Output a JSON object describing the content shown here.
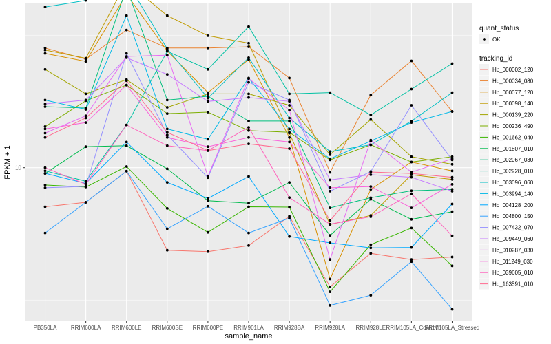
{
  "chart_data": {
    "type": "line",
    "xlabel": "sample_name",
    "ylabel": "FPKM + 1",
    "y_scale": "log",
    "y_ticks": [
      10
    ],
    "y_tick_labels": [
      "10"
    ],
    "ylim_log10": [
      0.42,
      1.62
    ],
    "grid": true,
    "legend_position": "right",
    "categories": [
      "PB350LA",
      "RRIM600LA",
      "RRIM600LE",
      "RRIM600SE",
      "RRIM600PE",
      "RRIM901LA",
      "RRIM928BA",
      "RRIM928LA",
      "RRIM928LE",
      "RRIM105LA_Control",
      "RRIM105LA_Stressed"
    ],
    "legends": [
      {
        "title": "quant_status",
        "entries": [
          "OK"
        ]
      },
      {
        "title": "tracking_id",
        "entries": [
          "Hb_000002_120",
          "Hb_000034_080",
          "Hb_000077_120",
          "Hb_000098_140",
          "Hb_000139_220",
          "Hb_000236_490",
          "Hb_001662_040",
          "Hb_001807_010",
          "Hb_002067_030",
          "Hb_002928_010",
          "Hb_003096_060",
          "Hb_003994_140",
          "Hb_004128_200",
          "Hb_004800_150",
          "Hb_007432_070",
          "Hb_009449_060",
          "Hb_010287_030",
          "Hb_011249_030",
          "Hb_039605_010",
          "Hb_163591_010"
        ]
      }
    ],
    "series": [
      {
        "name": "Hb_000002_120",
        "color": "#F8766D",
        "values": [
          7.12,
          7.4,
          9.7,
          4.88,
          4.82,
          5.08,
          6.55,
          3.55,
          4.75,
          4.5,
          4.6
        ]
      },
      {
        "name": "Hb_000034_080",
        "color": "#EA8331",
        "values": [
          28.3,
          25.7,
          33.1,
          28.3,
          28.3,
          28.6,
          21.8,
          9.6,
          18.8,
          25.3,
          16.3
        ]
      },
      {
        "name": "Hb_000077_120",
        "color": "#D89000",
        "values": [
          27.0,
          25.2,
          45.2,
          27.6,
          19.2,
          25.6,
          13.0,
          3.8,
          8.28,
          10.5,
          9.72
        ]
      },
      {
        "name": "Hb_000098_140",
        "color": "#C09B00",
        "values": [
          27.8,
          25.9,
          50.3,
          37.5,
          31.5,
          29.5,
          13.5,
          6.1,
          6.6,
          9.4,
          9.03
        ]
      },
      {
        "name": "Hb_000139_220",
        "color": "#A3A500",
        "values": [
          23.5,
          19.0,
          21.5,
          16.9,
          19.0,
          19.0,
          17.2,
          11.2,
          15.2,
          11.0,
          10.3
        ]
      },
      {
        "name": "Hb_000236_490",
        "color": "#7CAE00",
        "values": [
          14.3,
          17.9,
          20.5,
          16.0,
          16.2,
          13.8,
          13.6,
          10.7,
          12.2,
          10.5,
          11.0
        ]
      },
      {
        "name": "Hb_001662_040",
        "color": "#39B600",
        "values": [
          8.6,
          8.45,
          10.1,
          7.02,
          5.7,
          7.12,
          7.1,
          3.4,
          5.12,
          5.92,
          4.26
        ]
      },
      {
        "name": "Hb_001807_010",
        "color": "#00BB4E",
        "values": [
          9.5,
          12.0,
          12.1,
          9.9,
          7.5,
          7.35,
          8.8,
          5.55,
          7.6,
          6.38,
          6.82
        ]
      },
      {
        "name": "Hb_002067_030",
        "color": "#00BF7D",
        "values": [
          17.0,
          16.8,
          47.8,
          18.0,
          18.6,
          15.0,
          15.0,
          7.05,
          7.7,
          8.18,
          8.28
        ]
      },
      {
        "name": "Hb_002928_010",
        "color": "#00C1A3",
        "values": [
          9.73,
          8.89,
          14.5,
          27.5,
          23.5,
          34.1,
          19.0,
          19.2,
          15.8,
          19.8,
          24.7
        ]
      },
      {
        "name": "Hb_003096_060",
        "color": "#00BFC4",
        "values": [
          40.4,
          42.8,
          50.5,
          28.1,
          18.3,
          26.0,
          15.4,
          11.5,
          12.2,
          15.0,
          19.2
        ]
      },
      {
        "name": "Hb_003994_140",
        "color": "#00B8E7",
        "values": [
          18.0,
          16.6,
          37.5,
          14.0,
          12.8,
          21.8,
          14.0,
          10.8,
          12.6,
          14.8,
          16.3
        ]
      },
      {
        "name": "Hb_004128_200",
        "color": "#00A9FF",
        "values": [
          9.52,
          8.72,
          12.5,
          8.8,
          7.65,
          9.27,
          5.5,
          5.2,
          4.98,
          5.0,
          7.29
        ]
      },
      {
        "name": "Hb_004800_150",
        "color": "#35A2FF",
        "values": [
          5.67,
          7.4,
          9.7,
          5.88,
          7.15,
          5.67,
          6.45,
          3.02,
          3.3,
          4.42,
          2.92
        ]
      },
      {
        "name": "Hb_007432_070",
        "color": "#9590FF",
        "values": [
          8.4,
          8.5,
          27.0,
          13.3,
          9.17,
          21.0,
          18.0,
          8.15,
          9.67,
          17.2,
          10.7
        ]
      },
      {
        "name": "Hb_009449_060",
        "color": "#C77CFF",
        "values": [
          17.4,
          18.0,
          26.0,
          22.5,
          17.8,
          18.4,
          17.8,
          8.99,
          9.41,
          9.2,
          8.15
        ]
      },
      {
        "name": "Hb_010287_030",
        "color": "#E76BF3",
        "values": [
          13.5,
          15.7,
          26.3,
          26.6,
          9.28,
          21.7,
          16.5,
          4.5,
          12.7,
          9.62,
          10.8
        ]
      },
      {
        "name": "Hb_011249_030",
        "color": "#FA62DB",
        "values": [
          14.0,
          14.8,
          20.5,
          13.0,
          12.0,
          13.0,
          12.5,
          8.4,
          8.49,
          7.05,
          8.65
        ]
      },
      {
        "name": "Hb_039605_010",
        "color": "#FF62BC",
        "values": [
          10.0,
          8.65,
          14.5,
          12.1,
          11.6,
          14.2,
          7.71,
          6.12,
          6.53,
          7.97,
          5.53
        ]
      },
      {
        "name": "Hb_163591_010",
        "color": "#FF6C91",
        "values": [
          13.0,
          15.4,
          21.3,
          13.6,
          11.6,
          12.3,
          11.8,
          6.31,
          9.63,
          9.51,
          9.2
        ]
      }
    ]
  }
}
